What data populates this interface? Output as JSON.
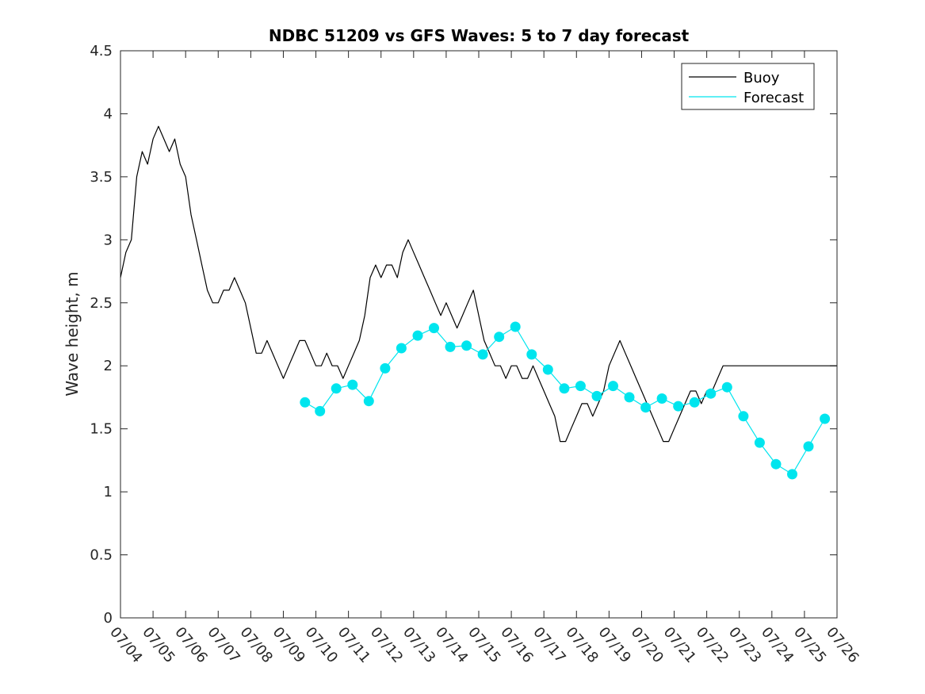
{
  "chart_data": {
    "type": "line",
    "title": "NDBC 51209 vs GFS Waves: 5 to 7 day forecast",
    "xlabel": "",
    "ylabel": "Wave height, m",
    "xlim": [
      "07/04",
      "07/26"
    ],
    "ylim": [
      0,
      4.5
    ],
    "x_tick_labels": [
      "07/04",
      "07/05",
      "07/06",
      "07/07",
      "07/08",
      "07/09",
      "07/10",
      "07/11",
      "07/12",
      "07/13",
      "07/14",
      "07/15",
      "07/16",
      "07/17",
      "07/18",
      "07/19",
      "07/20",
      "07/21",
      "07/22",
      "07/23",
      "07/24",
      "07/25",
      "07/26"
    ],
    "y_tick_labels": [
      "0",
      "0.5",
      "1",
      "1.5",
      "2",
      "2.5",
      "3",
      "3.5",
      "4",
      "4.5"
    ],
    "y_ticks": [
      0,
      0.5,
      1,
      1.5,
      2,
      2.5,
      3,
      3.5,
      4,
      4.5
    ],
    "legend": {
      "placement": "top-right",
      "entries": [
        {
          "label": "Buoy",
          "color": "#000000"
        },
        {
          "label": "Forecast",
          "color": "#00e5ee"
        }
      ]
    },
    "grid": false,
    "series": [
      {
        "name": "Buoy",
        "color": "#000000",
        "x": [
          "07/04 00:00",
          "07/04 04:00",
          "07/04 08:00",
          "07/04 12:00",
          "07/04 16:00",
          "07/04 20:00",
          "07/05 00:00",
          "07/05 04:00",
          "07/05 08:00",
          "07/05 12:00",
          "07/05 16:00",
          "07/05 20:00",
          "07/06 00:00",
          "07/06 04:00",
          "07/06 08:00",
          "07/06 12:00",
          "07/06 16:00",
          "07/06 20:00",
          "07/07 00:00",
          "07/07 04:00",
          "07/07 08:00",
          "07/07 12:00",
          "07/07 16:00",
          "07/07 20:00",
          "07/08 00:00",
          "07/08 04:00",
          "07/08 08:00",
          "07/08 12:00",
          "07/08 16:00",
          "07/08 20:00",
          "07/09 00:00",
          "07/09 04:00",
          "07/09 08:00",
          "07/09 12:00",
          "07/09 16:00",
          "07/09 20:00",
          "07/10 00:00",
          "07/10 04:00",
          "07/10 08:00",
          "07/10 12:00",
          "07/10 16:00",
          "07/10 20:00",
          "07/11 00:00",
          "07/11 04:00",
          "07/11 08:00",
          "07/11 12:00",
          "07/11 16:00",
          "07/11 20:00",
          "07/12 00:00",
          "07/12 04:00",
          "07/12 08:00",
          "07/12 12:00",
          "07/12 16:00",
          "07/12 20:00",
          "07/13 00:00",
          "07/13 04:00",
          "07/13 08:00",
          "07/13 12:00",
          "07/13 16:00",
          "07/13 20:00",
          "07/14 00:00",
          "07/14 04:00",
          "07/14 08:00",
          "07/14 12:00",
          "07/14 16:00",
          "07/14 20:00",
          "07/15 00:00",
          "07/15 04:00",
          "07/15 08:00",
          "07/15 12:00",
          "07/15 16:00",
          "07/15 20:00",
          "07/16 00:00",
          "07/16 04:00",
          "07/16 08:00",
          "07/16 12:00",
          "07/16 16:00",
          "07/16 20:00",
          "07/17 00:00",
          "07/17 04:00",
          "07/17 08:00",
          "07/17 12:00",
          "07/17 16:00",
          "07/17 20:00",
          "07/18 00:00",
          "07/18 04:00",
          "07/18 08:00",
          "07/18 12:00",
          "07/18 16:00",
          "07/18 20:00",
          "07/19 00:00",
          "07/19 04:00",
          "07/19 08:00",
          "07/19 12:00",
          "07/19 16:00",
          "07/19 20:00",
          "07/20 00:00",
          "07/20 04:00",
          "07/20 08:00",
          "07/20 12:00",
          "07/20 16:00",
          "07/20 20:00",
          "07/21 00:00",
          "07/21 04:00",
          "07/21 08:00",
          "07/21 12:00",
          "07/21 16:00",
          "07/21 20:00",
          "07/22 00:00",
          "07/22 04:00",
          "07/22 08:00",
          "07/22 12:00",
          "07/22 16:00",
          "07/22 20:00",
          "07/23 00:00",
          "07/23 04:00",
          "07/23 08:00",
          "07/23 12:00",
          "07/23 16:00",
          "07/23 20:00",
          "07/24 00:00",
          "07/24 04:00",
          "07/24 08:00",
          "07/24 12:00",
          "07/24 16:00",
          "07/24 20:00",
          "07/25 00:00",
          "07/25 04:00",
          "07/25 08:00",
          "07/25 12:00",
          "07/25 16:00",
          "07/25 20:00",
          "07/26 00:00"
        ],
        "y": [
          2.7,
          2.9,
          3.0,
          3.5,
          3.7,
          3.6,
          3.8,
          3.9,
          3.8,
          3.7,
          3.8,
          3.6,
          3.5,
          3.2,
          3.0,
          2.8,
          2.6,
          2.5,
          2.5,
          2.6,
          2.6,
          2.7,
          2.6,
          2.5,
          2.3,
          2.1,
          2.1,
          2.2,
          2.1,
          2.0,
          1.9,
          2.0,
          2.1,
          2.2,
          2.2,
          2.1,
          2.0,
          2.0,
          2.1,
          2.0,
          2.0,
          1.9,
          2.0,
          2.1,
          2.2,
          2.4,
          2.7,
          2.8,
          2.7,
          2.8,
          2.8,
          2.7,
          2.9,
          3.0,
          2.9,
          2.8,
          2.7,
          2.6,
          2.5,
          2.4,
          2.5,
          2.4,
          2.3,
          2.4,
          2.5,
          2.6,
          2.4,
          2.2,
          2.1,
          2.0,
          2.0,
          1.9,
          2.0,
          2.0,
          1.9,
          1.9,
          2.0,
          1.9,
          1.8,
          1.7,
          1.6,
          1.4,
          1.4,
          1.5,
          1.6,
          1.7,
          1.7,
          1.6,
          1.7,
          1.8,
          2.0,
          2.1,
          2.2,
          2.1,
          2.0,
          1.9,
          1.8,
          1.7,
          1.6,
          1.5,
          1.4,
          1.4,
          1.5,
          1.6,
          1.7,
          1.8,
          1.8,
          1.7,
          1.8,
          1.8,
          1.9,
          2.0,
          2.0,
          2.0,
          2.0,
          2.0,
          2.0,
          2.0,
          2.0,
          2.0,
          2.0,
          2.0,
          2.0,
          2.0,
          2.0,
          2.0,
          2.0,
          2.0,
          2.0,
          2.0,
          2.0,
          2.0,
          2.0
        ]
      },
      {
        "name": "Forecast",
        "color": "#00e5ee",
        "x": [
          "07/09 16:00",
          "07/10 03:00",
          "07/10 15:00",
          "07/11 03:00",
          "07/11 15:00",
          "07/12 03:00",
          "07/12 15:00",
          "07/13 03:00",
          "07/13 15:00",
          "07/14 03:00",
          "07/14 15:00",
          "07/15 03:00",
          "07/15 15:00",
          "07/16 03:00",
          "07/16 15:00",
          "07/17 03:00",
          "07/17 15:00",
          "07/18 03:00",
          "07/18 15:00",
          "07/19 03:00",
          "07/19 15:00",
          "07/20 03:00",
          "07/20 15:00",
          "07/21 03:00",
          "07/21 15:00",
          "07/22 03:00",
          "07/22 15:00",
          "07/23 03:00",
          "07/23 15:00",
          "07/24 03:00",
          "07/24 15:00",
          "07/25 03:00",
          "07/25 15:00"
        ],
        "y": [
          1.71,
          1.64,
          1.82,
          1.85,
          1.72,
          1.98,
          2.14,
          2.24,
          2.3,
          2.15,
          2.16,
          2.09,
          2.23,
          2.31,
          2.09,
          1.97,
          1.82,
          1.84,
          1.76,
          1.84,
          1.75,
          1.67,
          1.74,
          1.68,
          1.71,
          1.78,
          1.83,
          1.6,
          1.39,
          1.22,
          1.14,
          1.36,
          1.58
        ]
      }
    ]
  }
}
